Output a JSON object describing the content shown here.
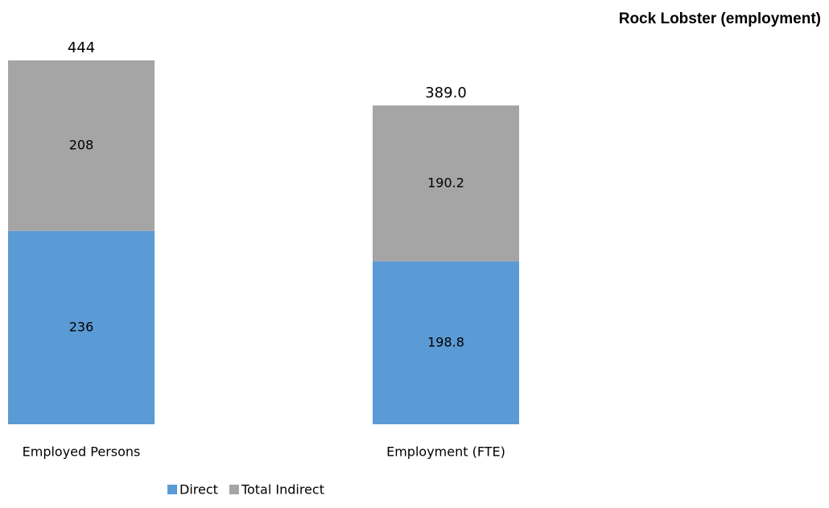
{
  "chart_data": {
    "type": "stacked_bar",
    "title": "Rock Lobster (employment)",
    "categories": [
      "Employed Persons",
      "Employment (FTE)"
    ],
    "series": [
      {
        "name": "Direct",
        "color": "#5b9bd5",
        "values": [
          236,
          198.8
        ]
      },
      {
        "name": "Total Indirect",
        "color": "#a5a5a5",
        "values": [
          208,
          190.2
        ]
      }
    ],
    "totals": [
      444,
      389
    ],
    "total_labels": [
      "444",
      "389.0"
    ],
    "legend": "bottom"
  }
}
